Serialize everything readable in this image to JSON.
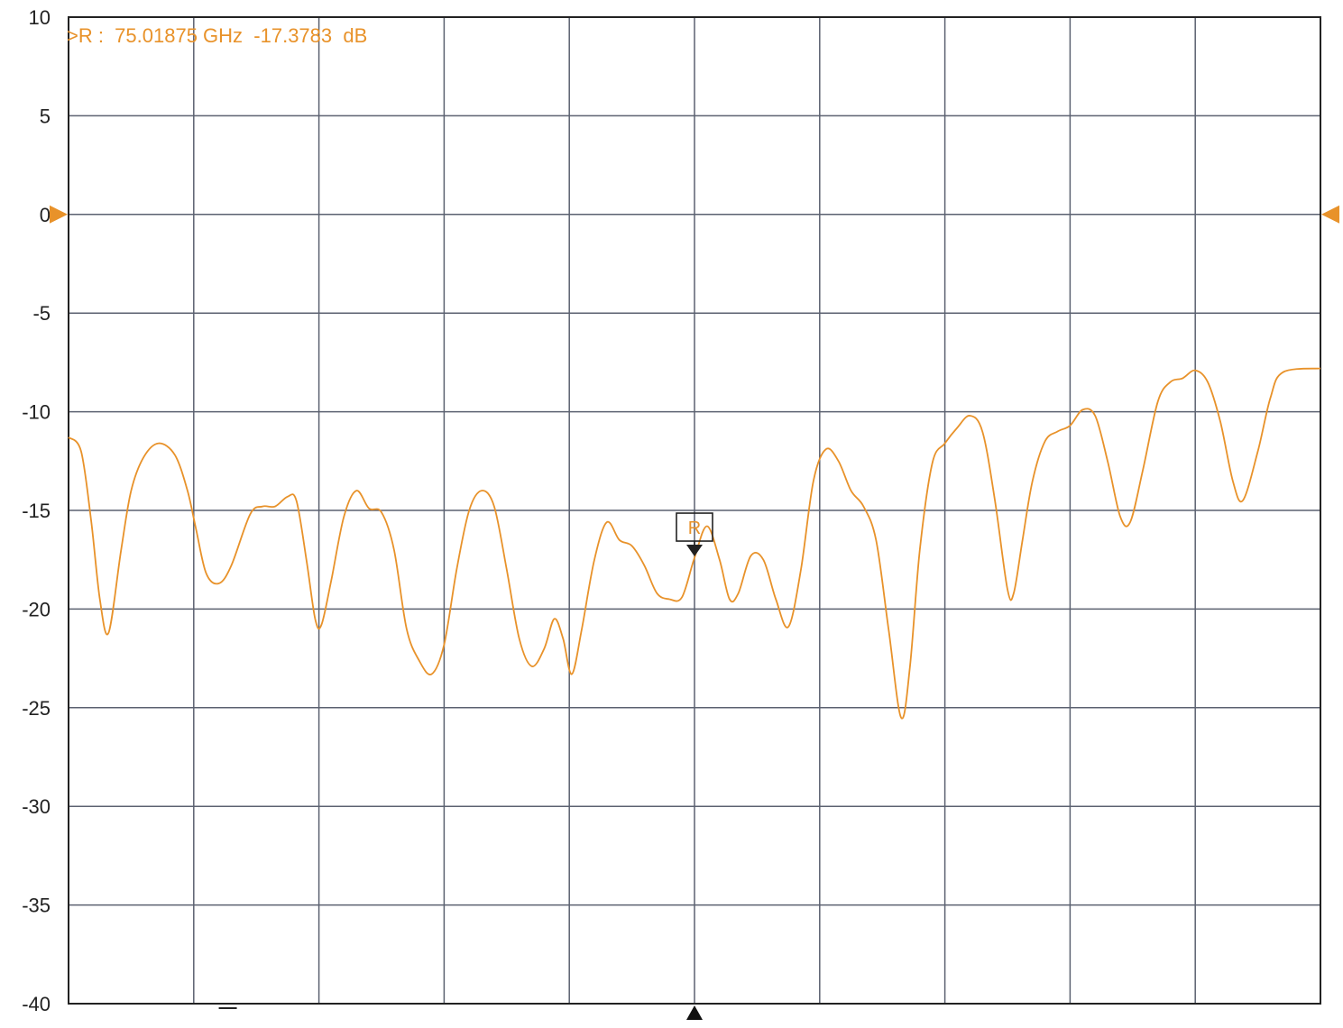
{
  "colors": {
    "trace": "#e8922a",
    "grid": "#5b6170",
    "axis_text": "#222222",
    "background": "#ffffff",
    "marker_box": "#222222",
    "stimulus_marker": "#111111"
  },
  "marker": {
    "readout": ">R :  75.01875 GHz  -17.3783  dB",
    "label": "R",
    "x_division": 5,
    "value_db": -17.3783
  },
  "reference_level_db": 0,
  "chart_data": {
    "type": "line",
    "title": "",
    "xlabel": "",
    "ylabel": "",
    "ylim": [
      -40,
      10
    ],
    "xlim_divisions": [
      0,
      10
    ],
    "yticks": [
      10,
      5,
      0,
      -5,
      -10,
      -15,
      -20,
      -25,
      -30,
      -35,
      -40
    ],
    "ytick_labels": [
      "10",
      "5",
      "0",
      "-5",
      "-10",
      "-15",
      "-20",
      "-25",
      "-30",
      "-35",
      "-40"
    ],
    "x_gridlines": 10,
    "grid": true,
    "series": [
      {
        "values": [
          [
            0.0,
            -11.3
          ],
          [
            0.1,
            -12.0
          ],
          [
            0.18,
            -15.5
          ],
          [
            0.25,
            -19.5
          ],
          [
            0.32,
            -21.2
          ],
          [
            0.42,
            -17.0
          ],
          [
            0.5,
            -14.0
          ],
          [
            0.6,
            -12.3
          ],
          [
            0.72,
            -11.6
          ],
          [
            0.85,
            -12.2
          ],
          [
            0.95,
            -14.0
          ],
          [
            1.02,
            -16.0
          ],
          [
            1.1,
            -18.2
          ],
          [
            1.2,
            -18.7
          ],
          [
            1.3,
            -17.8
          ],
          [
            1.45,
            -15.2
          ],
          [
            1.55,
            -14.8
          ],
          [
            1.65,
            -14.8
          ],
          [
            1.75,
            -14.3
          ],
          [
            1.82,
            -14.5
          ],
          [
            1.9,
            -17.5
          ],
          [
            1.97,
            -20.5
          ],
          [
            2.02,
            -20.8
          ],
          [
            2.1,
            -18.5
          ],
          [
            2.2,
            -15.3
          ],
          [
            2.3,
            -14.0
          ],
          [
            2.4,
            -14.9
          ],
          [
            2.5,
            -15.1
          ],
          [
            2.6,
            -17.0
          ],
          [
            2.7,
            -21.0
          ],
          [
            2.8,
            -22.6
          ],
          [
            2.9,
            -23.3
          ],
          [
            3.0,
            -21.8
          ],
          [
            3.1,
            -18.0
          ],
          [
            3.2,
            -15.0
          ],
          [
            3.3,
            -14.0
          ],
          [
            3.4,
            -14.8
          ],
          [
            3.5,
            -18.0
          ],
          [
            3.6,
            -21.5
          ],
          [
            3.7,
            -22.9
          ],
          [
            3.8,
            -22.0
          ],
          [
            3.88,
            -20.5
          ],
          [
            3.95,
            -21.5
          ],
          [
            4.02,
            -23.3
          ],
          [
            4.1,
            -21.0
          ],
          [
            4.2,
            -17.5
          ],
          [
            4.3,
            -15.6
          ],
          [
            4.4,
            -16.5
          ],
          [
            4.5,
            -16.8
          ],
          [
            4.6,
            -17.8
          ],
          [
            4.7,
            -19.2
          ],
          [
            4.8,
            -19.5
          ],
          [
            4.9,
            -19.4
          ],
          [
            5.0,
            -17.4
          ],
          [
            5.1,
            -15.8
          ],
          [
            5.2,
            -17.5
          ],
          [
            5.28,
            -19.5
          ],
          [
            5.35,
            -19.2
          ],
          [
            5.45,
            -17.3
          ],
          [
            5.55,
            -17.5
          ],
          [
            5.65,
            -19.5
          ],
          [
            5.75,
            -20.9
          ],
          [
            5.85,
            -18.0
          ],
          [
            5.95,
            -13.5
          ],
          [
            6.05,
            -11.9
          ],
          [
            6.15,
            -12.5
          ],
          [
            6.25,
            -14.0
          ],
          [
            6.35,
            -14.8
          ],
          [
            6.45,
            -16.5
          ],
          [
            6.55,
            -21.0
          ],
          [
            6.65,
            -25.5
          ],
          [
            6.72,
            -23.0
          ],
          [
            6.8,
            -17.0
          ],
          [
            6.9,
            -12.6
          ],
          [
            7.0,
            -11.6
          ],
          [
            7.1,
            -10.8
          ],
          [
            7.2,
            -10.2
          ],
          [
            7.3,
            -11.0
          ],
          [
            7.4,
            -14.5
          ],
          [
            7.5,
            -19.0
          ],
          [
            7.55,
            -19.2
          ],
          [
            7.62,
            -16.5
          ],
          [
            7.7,
            -13.5
          ],
          [
            7.8,
            -11.5
          ],
          [
            7.9,
            -11.0
          ],
          [
            8.0,
            -10.7
          ],
          [
            8.1,
            -9.9
          ],
          [
            8.2,
            -10.2
          ],
          [
            8.3,
            -12.5
          ],
          [
            8.4,
            -15.3
          ],
          [
            8.48,
            -15.6
          ],
          [
            8.58,
            -13.0
          ],
          [
            8.7,
            -9.5
          ],
          [
            8.8,
            -8.5
          ],
          [
            8.9,
            -8.3
          ],
          [
            9.0,
            -7.9
          ],
          [
            9.1,
            -8.5
          ],
          [
            9.2,
            -10.5
          ],
          [
            9.3,
            -13.5
          ],
          [
            9.38,
            -14.5
          ],
          [
            9.5,
            -12.0
          ],
          [
            9.6,
            -9.3
          ],
          [
            9.7,
            -8.0
          ],
          [
            10.0,
            -7.8
          ]
        ]
      }
    ]
  }
}
